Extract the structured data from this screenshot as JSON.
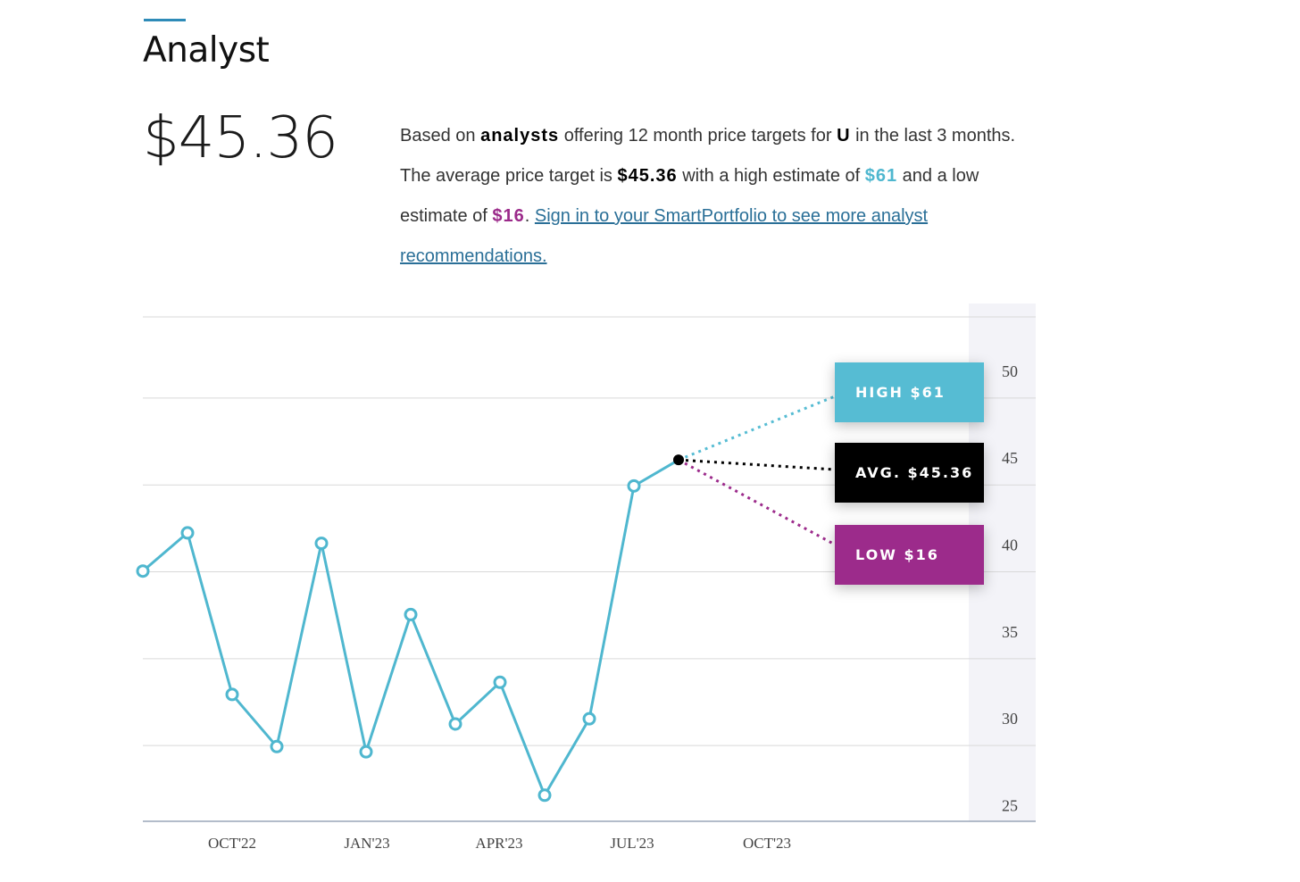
{
  "section": {
    "title": "Analyst"
  },
  "price": {
    "value": "$45.36"
  },
  "description": {
    "p1": "Based on ",
    "b1": "analysts",
    "p2": " offering 12 month price targets for ",
    "b2": "U",
    "p3": " in the last 3 months. The average price target is ",
    "b3": "$45.36",
    "p4": " with a high estimate of ",
    "high": "$61",
    "p5": " and a low estimate of ",
    "low": "$16",
    "p6": ". ",
    "link": "Sign in to your SmartPortfolio to see more analyst recommendations."
  },
  "colors": {
    "accent": "#2e8bb8",
    "line": "#4fb7cf",
    "high": "#56bcd3",
    "avg": "#000000",
    "low": "#9c2b8b",
    "link": "#2a6f97",
    "axis_band": "#f3f3f8"
  },
  "targets": {
    "high_label": "HIGH $61",
    "avg_label": "AVG. $45.36",
    "low_label": "LOW $16"
  },
  "chart_data": {
    "type": "line",
    "series": [
      {
        "values": [
          38.5,
          40.7,
          31.4,
          28.4,
          40.1,
          28.1,
          36.0,
          29.7,
          32.1,
          25.6,
          30.0,
          43.4,
          44.9
        ]
      }
    ],
    "x_labels": [
      "OCT'22",
      "JAN'23",
      "APR'23",
      "JUL'23",
      "OCT'23"
    ],
    "y_ticks": [
      25,
      30,
      35,
      40,
      45,
      50
    ],
    "ylim": [
      24.1,
      53.9
    ],
    "grid": true,
    "forecast": {
      "high": 61,
      "average": 45.36,
      "low": 16
    }
  }
}
